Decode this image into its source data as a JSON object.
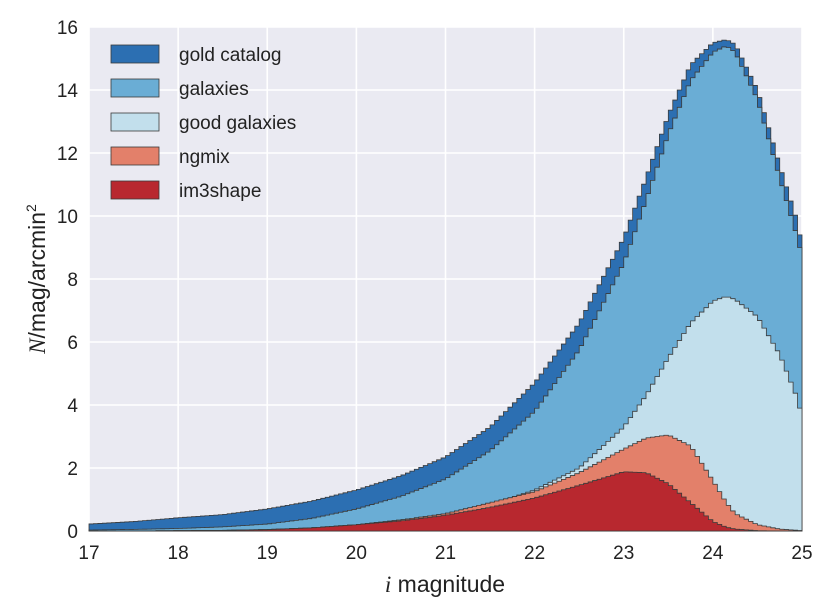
{
  "chart_data": {
    "type": "area",
    "style": "step histogram",
    "title": "",
    "xlabel": {
      "math": "i",
      "text": " magnitude"
    },
    "ylabel": {
      "math": "N",
      "text": "/mag/arcmin",
      "sup": "2"
    },
    "xlim": [
      17,
      25
    ],
    "ylim": [
      0,
      16
    ],
    "xticks": [
      "17",
      "18",
      "19",
      "20",
      "21",
      "22",
      "23",
      "24",
      "25"
    ],
    "yticks": [
      "0",
      "2",
      "4",
      "6",
      "8",
      "10",
      "12",
      "14",
      "16"
    ],
    "grid": true,
    "legend_position": "top-left",
    "background": "#eaeaf2",
    "x": [
      17.0,
      17.5,
      18.0,
      18.5,
      19.0,
      19.5,
      20.0,
      20.5,
      21.0,
      21.5,
      22.0,
      22.5,
      23.0,
      23.25,
      23.5,
      23.75,
      24.0,
      24.15,
      24.25,
      24.5,
      24.75,
      24.95,
      25.0
    ],
    "series": [
      {
        "name": "gold catalog",
        "color": "#2c6fb2",
        "values": [
          0.22,
          0.3,
          0.42,
          0.52,
          0.7,
          0.95,
          1.3,
          1.75,
          2.35,
          3.3,
          4.7,
          6.6,
          9.3,
          11.2,
          13.2,
          14.8,
          15.5,
          15.6,
          15.45,
          14.0,
          11.6,
          9.8,
          9.0
        ]
      },
      {
        "name": "galaxies",
        "color": "#6aadd5",
        "values": [
          0.03,
          0.05,
          0.08,
          0.13,
          0.22,
          0.4,
          0.7,
          1.1,
          1.65,
          2.55,
          3.8,
          5.75,
          8.5,
          10.5,
          12.6,
          14.3,
          15.2,
          15.4,
          15.2,
          13.7,
          11.2,
          9.3,
          8.7
        ]
      },
      {
        "name": "good galaxies",
        "color": "#c2dfec",
        "values": [
          0.0,
          0.0,
          0.01,
          0.02,
          0.05,
          0.1,
          0.2,
          0.35,
          0.55,
          0.85,
          1.3,
          2.0,
          3.3,
          4.3,
          5.5,
          6.6,
          7.3,
          7.45,
          7.35,
          6.8,
          5.6,
          4.2,
          3.6
        ]
      },
      {
        "name": "ngmix",
        "color": "#e3806a",
        "values": [
          0.0,
          0.0,
          0.01,
          0.02,
          0.04,
          0.1,
          0.2,
          0.35,
          0.55,
          0.9,
          1.25,
          1.85,
          2.6,
          2.95,
          3.05,
          2.7,
          1.6,
          0.9,
          0.55,
          0.2,
          0.06,
          0.02,
          0.01
        ]
      },
      {
        "name": "im3shape",
        "color": "#b8282f",
        "values": [
          0.0,
          0.0,
          0.01,
          0.02,
          0.04,
          0.1,
          0.2,
          0.32,
          0.5,
          0.75,
          1.05,
          1.45,
          1.88,
          1.85,
          1.5,
          0.9,
          0.3,
          0.12,
          0.06,
          0.01,
          0.0,
          0.0,
          0.0
        ]
      }
    ]
  }
}
